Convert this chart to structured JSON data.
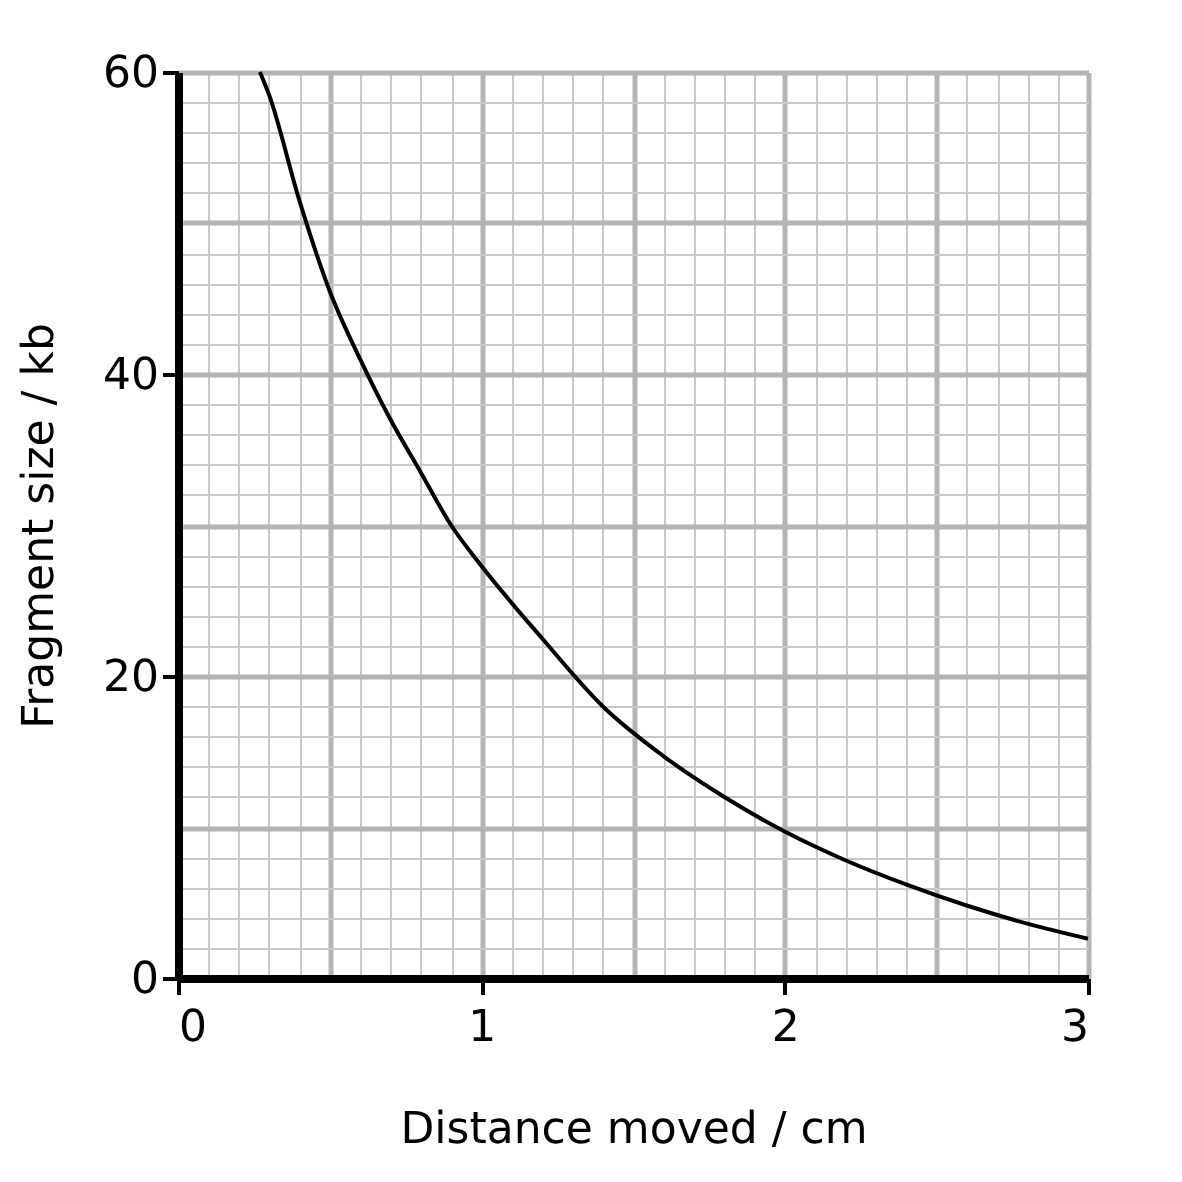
{
  "chart_data": {
    "type": "line",
    "xlabel": "Distance moved / cm",
    "ylabel": "Fragment size / kb",
    "x": [
      0.27,
      0.3,
      0.4,
      0.5,
      0.6,
      0.7,
      0.8,
      0.9,
      1.0,
      1.2,
      1.4,
      1.6,
      1.8,
      2.0,
      2.2,
      2.4,
      2.6,
      2.8,
      3.0
    ],
    "series": [
      {
        "color": "#000000",
        "values": [
          60,
          58.5,
          51.5,
          45.5,
          41,
          37,
          33.5,
          30,
          27.3,
          22.5,
          18,
          14.7,
          12,
          9.7,
          7.8,
          6.2,
          4.8,
          3.6,
          2.6
        ]
      }
    ],
    "xlim": [
      0,
      3
    ],
    "ylim": [
      0,
      60
    ],
    "xticks": [
      0,
      1,
      2,
      3
    ],
    "yticks": [
      0,
      20,
      40,
      60
    ],
    "grid": true,
    "marker": "none",
    "line_style": "solid"
  }
}
